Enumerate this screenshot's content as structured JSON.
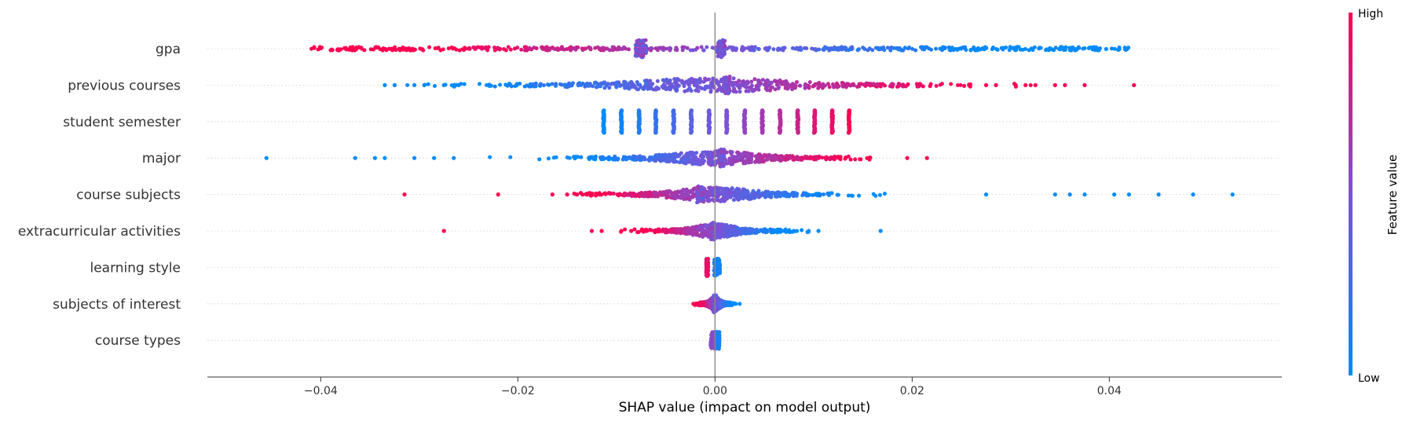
{
  "chart_data": {
    "type": "scatter",
    "subtype": "shap-beeswarm",
    "xlabel": "SHAP value (impact on model output)",
    "xlim": [
      -0.0515,
      0.0575
    ],
    "xticks": [
      -0.04,
      -0.02,
      0.0,
      0.02,
      0.04
    ],
    "xtick_labels": [
      "−0.04",
      "−0.02",
      "0.00",
      "0.02",
      "0.04"
    ],
    "zero_line": 0.0,
    "colorbar": {
      "title": "Feature value",
      "high_label": "High",
      "low_label": "Low",
      "low_color": "#008bfb",
      "mid_color": "#7c52d6",
      "high_color": "#ff0051"
    },
    "features": [
      {
        "name": "gpa",
        "min": -0.041,
        "max": 0.042,
        "color_trend": "high-left",
        "density": "even",
        "dense_spots": [
          {
            "x": -0.0075,
            "w": 0.0012
          },
          {
            "x": 0.0006,
            "w": 0.0008
          }
        ]
      },
      {
        "name": "previous courses",
        "min": -0.034,
        "max": 0.0425,
        "color_trend": "high-right",
        "density": "center",
        "outliers": [
          -0.0335,
          -0.0325,
          -0.0305,
          -0.0295,
          -0.0275,
          -0.026,
          0.0275,
          0.0285,
          0.0305,
          0.0315,
          0.0325,
          0.0345,
          0.0355,
          0.0375,
          0.0425
        ],
        "dense_spots": [
          {
            "x": 0.0012,
            "w": 0.0006
          }
        ]
      },
      {
        "name": "student semester",
        "type": "discrete",
        "stripes": [
          -0.0113,
          -0.0095,
          -0.0077,
          -0.006,
          -0.0042,
          -0.0024,
          -0.0006,
          0.0012,
          0.003,
          0.0048,
          0.0066,
          0.0084,
          0.0101,
          0.0119,
          0.0136
        ]
      },
      {
        "name": "major",
        "min": -0.0255,
        "max": 0.0165,
        "color_trend": "high-right",
        "density": "center",
        "outliers": [
          -0.0455,
          -0.0365,
          -0.0345,
          -0.0335,
          -0.0305,
          -0.0285,
          -0.0265,
          0.0195,
          0.0215
        ],
        "dense_spots": [
          {
            "x": 0.0007,
            "w": 0.0006
          }
        ]
      },
      {
        "name": "course subjects",
        "min": -0.017,
        "max": 0.0205,
        "color_trend": "high-left",
        "density": "center",
        "outliers": [
          -0.0315,
          -0.022,
          -0.0165,
          -0.015,
          -0.014,
          -0.013,
          -0.012,
          0.0275,
          0.0345,
          0.036,
          0.0375,
          0.0405,
          0.042,
          0.045,
          0.0485,
          0.0525
        ],
        "dense_spots": [
          {
            "x": -0.0015,
            "w": 0.0007
          }
        ]
      },
      {
        "name": "extracurricular activities",
        "min": -0.0105,
        "max": 0.0105,
        "color_trend": "high-left",
        "density": "center",
        "outliers": [
          -0.0275,
          -0.0125,
          -0.0115,
          -0.0095,
          -0.0085,
          -0.007,
          -0.006,
          0.007,
          0.008,
          0.0095,
          0.0105,
          0.0168
        ],
        "dense_spots": [
          {
            "x": -0.0002,
            "w": 0.0004
          }
        ]
      },
      {
        "name": "learning style",
        "type": "clusters",
        "clusters": [
          {
            "x": -0.0008,
            "w": 0.0002,
            "level": 0.92
          },
          {
            "x": 0.0002,
            "w": 0.0006,
            "level": 0.08
          }
        ]
      },
      {
        "name": "subjects of interest",
        "min": -0.0025,
        "max": 0.0025,
        "color_trend": "high-left",
        "density": "center",
        "outliers": [
          -0.0022,
          -0.0018,
          -0.0012,
          0.0015,
          0.0021,
          0.0025
        ],
        "dense_spots": [
          {
            "x": 0.0,
            "w": 0.0003
          }
        ]
      },
      {
        "name": "course types",
        "type": "clusters",
        "clusters": [
          {
            "x": -0.0002,
            "w": 0.0005,
            "level": 0.55
          },
          {
            "x": 0.0003,
            "w": 0.0003,
            "level": 0.1
          }
        ]
      }
    ]
  }
}
